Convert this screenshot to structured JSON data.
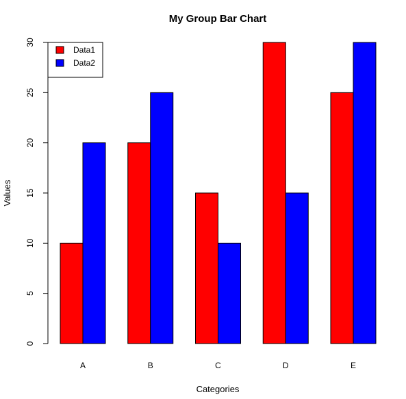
{
  "chart_data": {
    "type": "bar",
    "title": "My Group Bar Chart",
    "xlabel": "Categories",
    "ylabel": "Values",
    "categories": [
      "A",
      "B",
      "C",
      "D",
      "E"
    ],
    "series": [
      {
        "name": "Data1",
        "color": "#ff0000",
        "values": [
          10,
          20,
          15,
          30,
          25
        ]
      },
      {
        "name": "Data2",
        "color": "#0000ff",
        "values": [
          20,
          25,
          10,
          15,
          30
        ]
      }
    ],
    "ylim": [
      0,
      30
    ],
    "yticks": [
      "0",
      "5",
      "10",
      "15",
      "20",
      "25",
      "30"
    ],
    "grid": false,
    "legend_position": "top-left"
  }
}
